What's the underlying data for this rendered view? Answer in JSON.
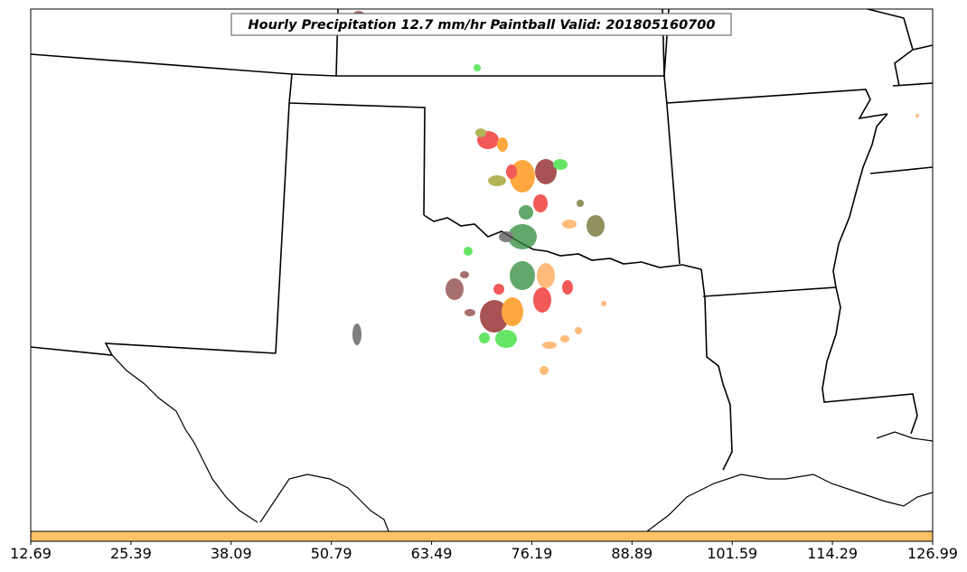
{
  "map": {
    "title": "Hourly Precipitation 12.7 mm/hr Paintball Valid: 201805160700"
  },
  "colorbar": {
    "color": "#ffc266",
    "ticks": [
      "12.69",
      "25.39",
      "38.09",
      "50.79",
      "63.49",
      "76.19",
      "88.89",
      "101.59",
      "114.29",
      "126.99"
    ]
  },
  "palette": {
    "dark_red": "#8b1a1a",
    "red": "#ee2222",
    "orange": "#ff8c00",
    "light_orange": "#ffa54f",
    "olive": "#9a9a20",
    "green": "#2e8b3a",
    "light_green": "#33dd33",
    "dark_olive": "#6b6b2a",
    "gray": "#555555",
    "brown": "#8b4040"
  }
}
